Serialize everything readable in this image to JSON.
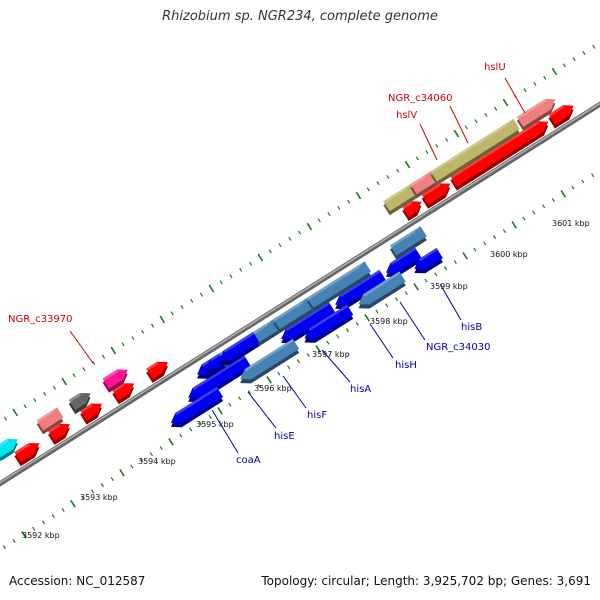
{
  "title": "Rhizobium sp. NGR234, complete genome",
  "footer": {
    "accession": "Accession: NC_012587",
    "summary": "Topology: circular; Length: 3,925,702 bp; Genes: 3,691"
  },
  "colors": {
    "forward_cds": "#ff0000",
    "reverse_cds": "#0000ee",
    "forward_label": "#cc0000",
    "reverse_label": "#0000aa",
    "backbone": "#888888",
    "tick": "#1a7a1a"
  },
  "kbp_ticks": [
    "3592 kbp",
    "3593 kbp",
    "3594 kbp",
    "3595 kbp",
    "3596 kbp",
    "3597 kbp",
    "3598 kbp",
    "3599 kbp",
    "3600 kbp",
    "3601 kbp"
  ],
  "forward_labels": [
    "NGR_c33970",
    "NGR_c34060",
    "hslV",
    "hslU"
  ],
  "reverse_labels": [
    "coaA",
    "hisE",
    "hisF",
    "hisA",
    "hisH",
    "NGR_c34030",
    "hisB"
  ]
}
